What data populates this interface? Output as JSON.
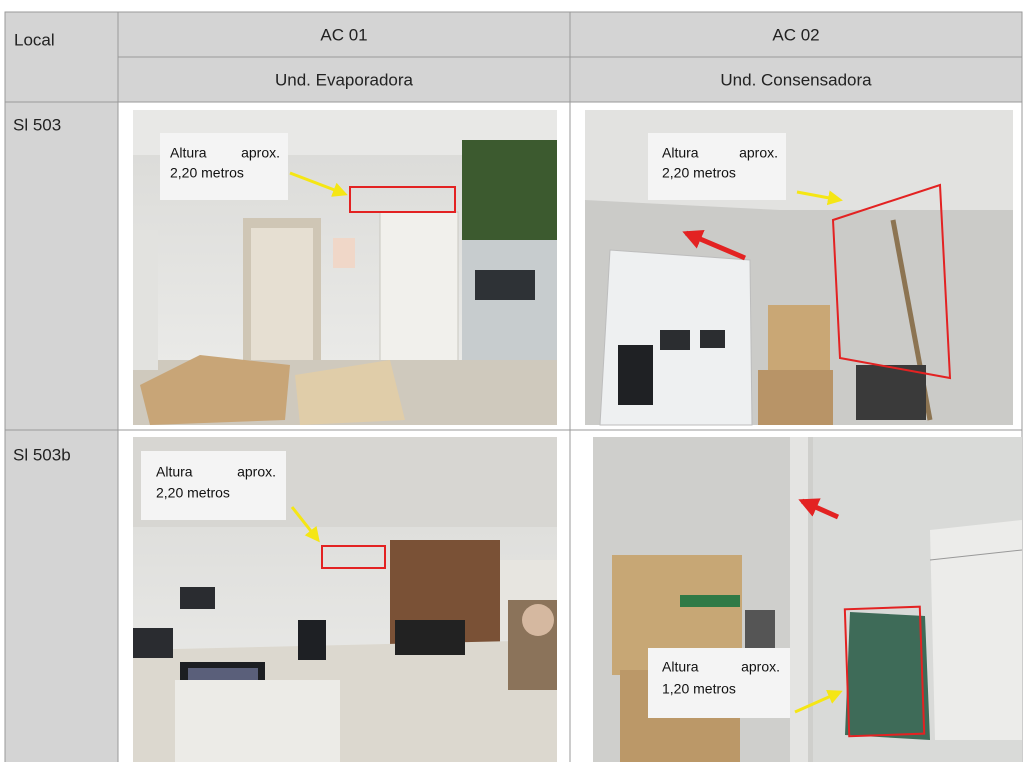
{
  "table": {
    "header": [
      "Local",
      "AC 01",
      "AC 02"
    ],
    "subheader": [
      "Und. Evaporadora",
      "Und. Consensadora"
    ],
    "rows": [
      {
        "local": "Sl 503",
        "photos": [
          {
            "callout": [
              "Altura",
              "aprox.",
              "2,20 metros"
            ]
          },
          {
            "callout": [
              "Altura",
              "aprox.",
              "2,20 metros"
            ]
          }
        ]
      },
      {
        "local": "Sl 503b",
        "photos": [
          {
            "callout": [
              "Altura",
              "aprox.",
              "2,20 metros"
            ]
          },
          {
            "callout": [
              "Altura",
              "aprox.",
              "1,20 metros"
            ]
          }
        ]
      }
    ]
  }
}
